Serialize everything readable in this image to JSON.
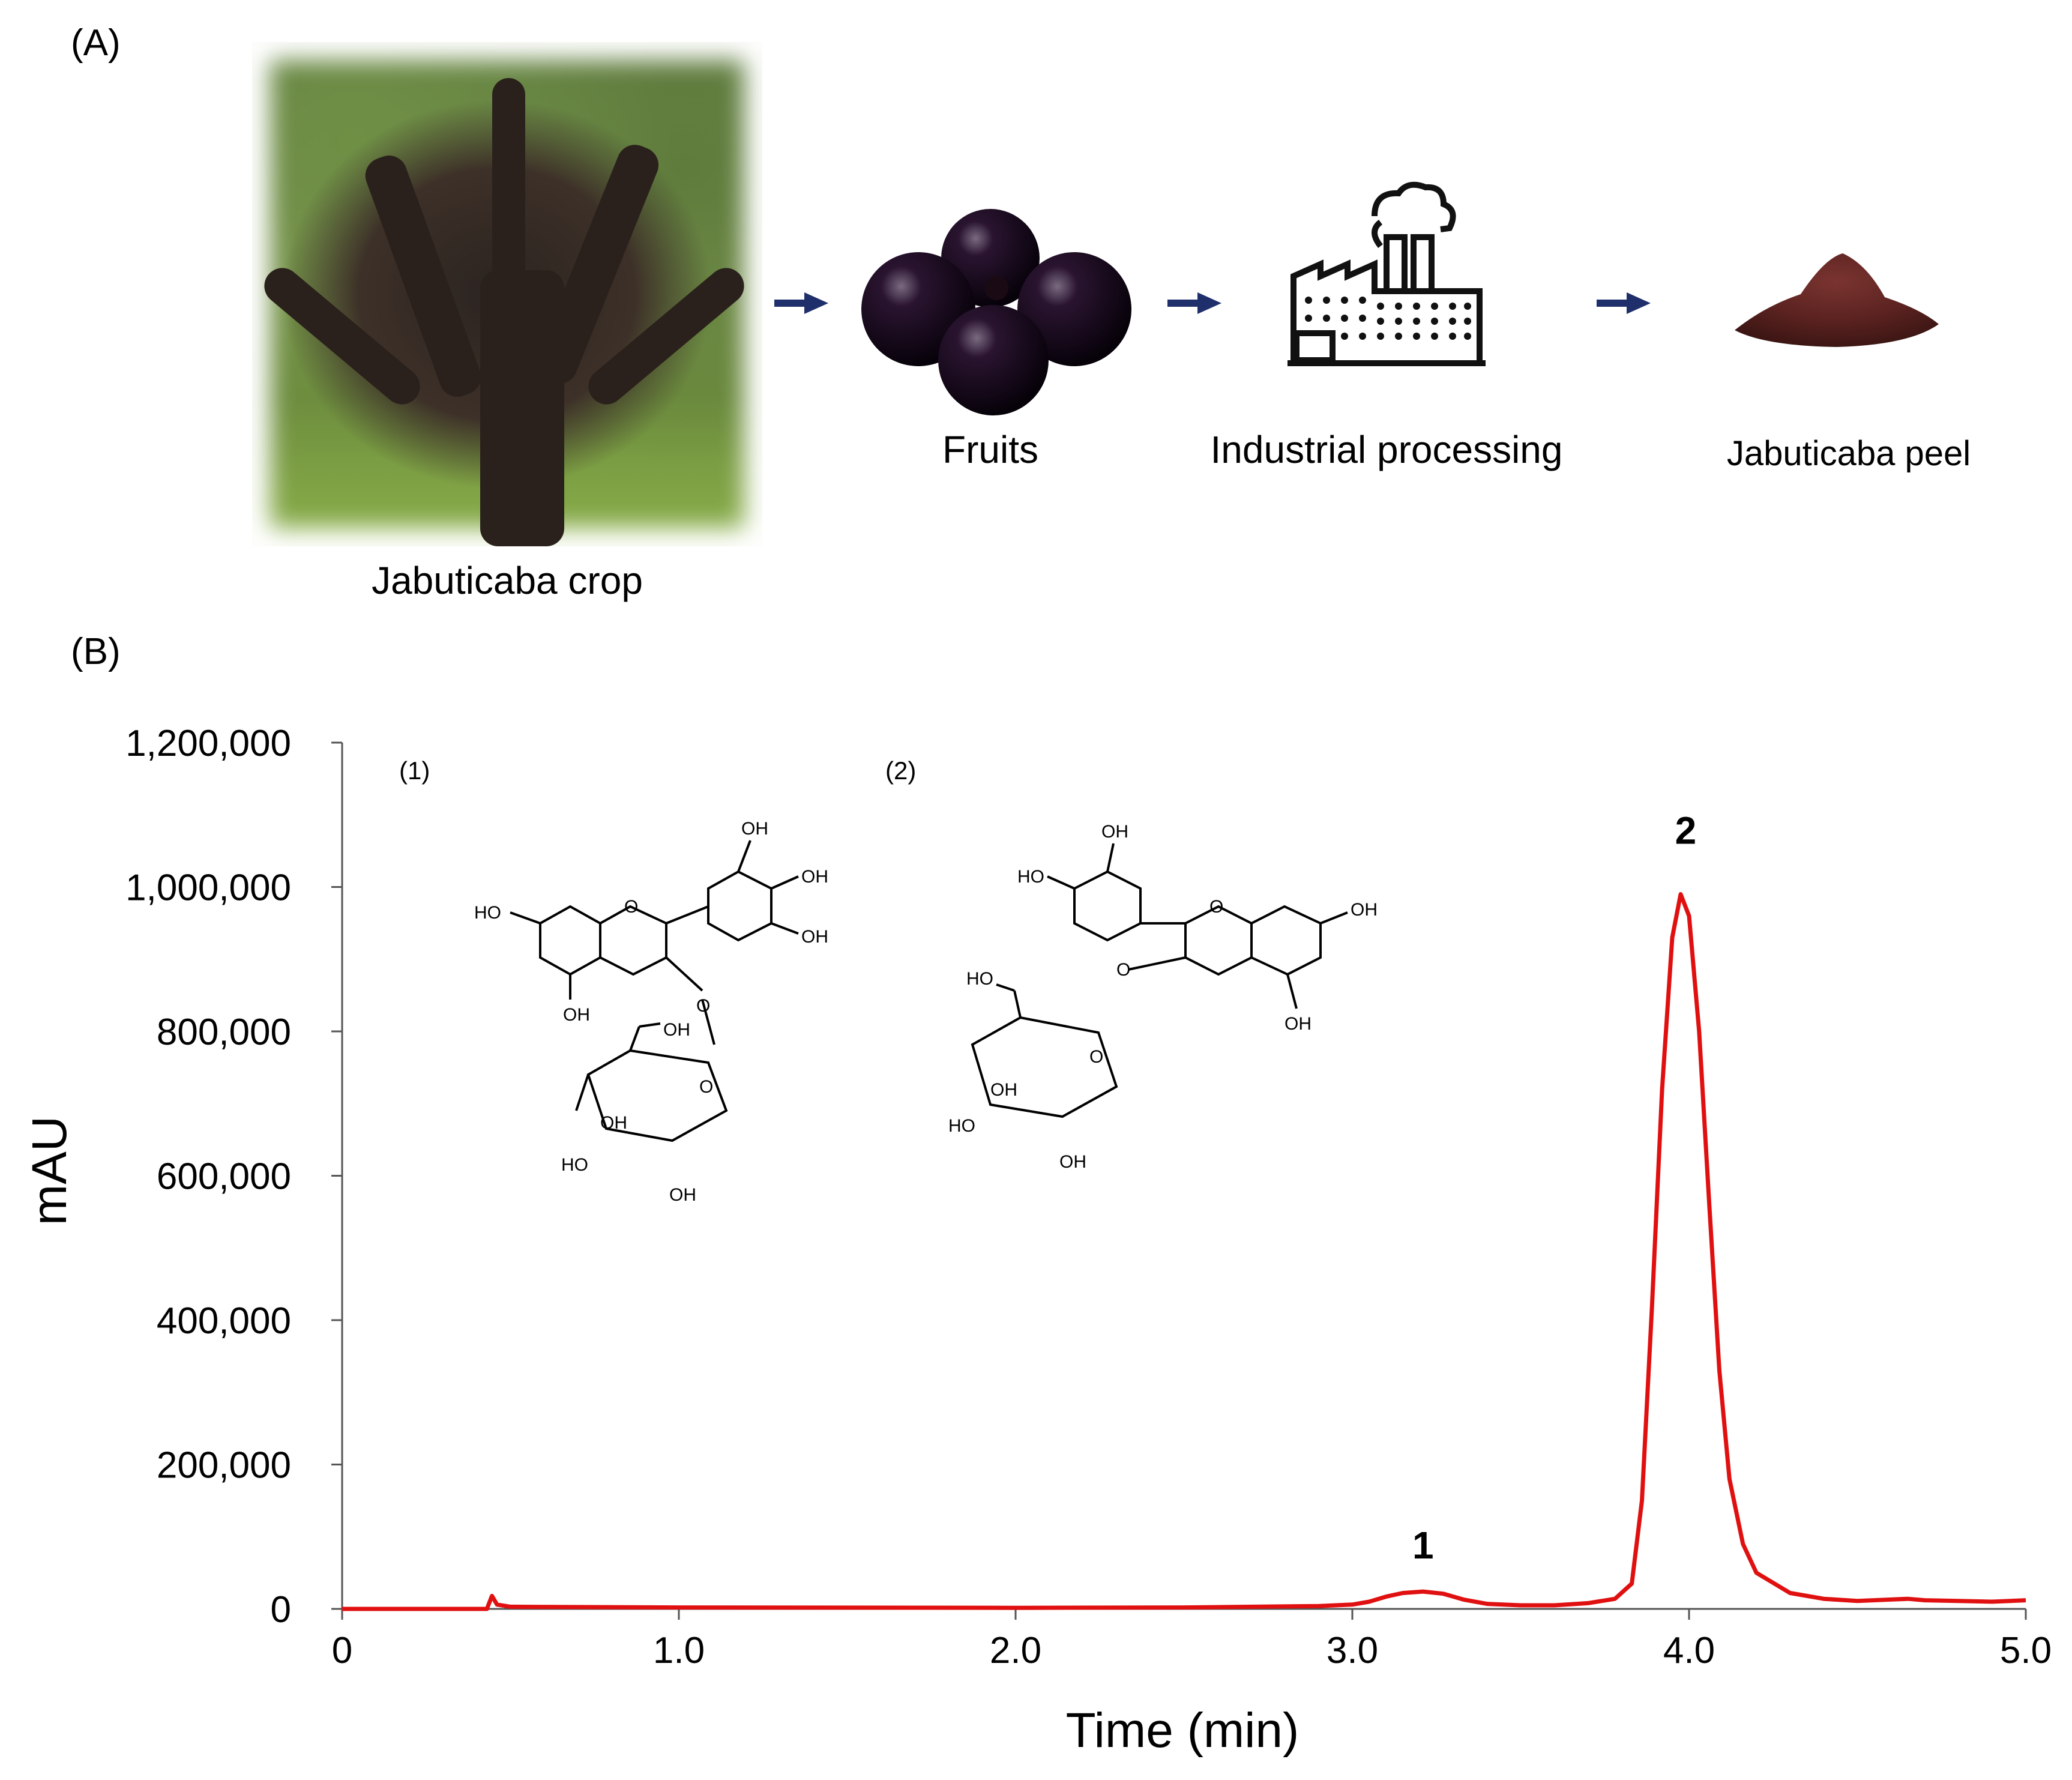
{
  "panel_labels": {
    "a": "(A)",
    "b": "(B)"
  },
  "workflow": {
    "steps": [
      {
        "label": "Jabuticaba crop",
        "icon": "tree-photo"
      },
      {
        "label": "Fruits",
        "icon": "fruits-image"
      },
      {
        "label": "Industrial processing",
        "icon": "factory-icon"
      },
      {
        "label": "Jabuticaba peel",
        "icon": "powder-image"
      }
    ],
    "arrow_color": "#1f2f6b"
  },
  "structures": {
    "s1": {
      "label": "(1)"
    },
    "s2": {
      "label": "(2)"
    },
    "atom_labels": {
      "oh": "OH",
      "ho": "HO",
      "o": "O"
    }
  },
  "chart_data": {
    "type": "line",
    "xlabel": "Time (min)",
    "ylabel": "mAU",
    "xlim": [
      0,
      5.0
    ],
    "ylim": [
      0,
      1200000
    ],
    "x_ticks": [
      "0",
      "1.0",
      "2.0",
      "3.0",
      "4.0",
      "5.0"
    ],
    "x_tick_values": [
      0,
      1.0,
      2.0,
      3.0,
      4.0,
      5.0
    ],
    "y_ticks": [
      "0",
      "200,000",
      "400,000",
      "600,000",
      "800,000",
      "1,000,000",
      "1,200,000"
    ],
    "y_tick_values": [
      0,
      200000,
      400000,
      600000,
      800000,
      1000000,
      1200000
    ],
    "line_color": "#e01010",
    "series": [
      {
        "points": [
          [
            0.0,
            0
          ],
          [
            0.43,
            0
          ],
          [
            0.445,
            18000
          ],
          [
            0.46,
            6000
          ],
          [
            0.5,
            3000
          ],
          [
            1.0,
            2000
          ],
          [
            2.0,
            1500
          ],
          [
            2.5,
            2000
          ],
          [
            2.9,
            4000
          ],
          [
            3.0,
            6000
          ],
          [
            3.05,
            10000
          ],
          [
            3.1,
            17000
          ],
          [
            3.15,
            22000
          ],
          [
            3.21,
            24000
          ],
          [
            3.27,
            21000
          ],
          [
            3.33,
            13000
          ],
          [
            3.4,
            7000
          ],
          [
            3.5,
            5000
          ],
          [
            3.6,
            5000
          ],
          [
            3.7,
            8000
          ],
          [
            3.78,
            14000
          ],
          [
            3.83,
            35000
          ],
          [
            3.86,
            150000
          ],
          [
            3.89,
            420000
          ],
          [
            3.92,
            720000
          ],
          [
            3.95,
            930000
          ],
          [
            3.975,
            990000
          ],
          [
            4.0,
            960000
          ],
          [
            4.03,
            800000
          ],
          [
            4.06,
            560000
          ],
          [
            4.09,
            330000
          ],
          [
            4.12,
            180000
          ],
          [
            4.16,
            90000
          ],
          [
            4.2,
            50000
          ],
          [
            4.3,
            22000
          ],
          [
            4.4,
            14000
          ],
          [
            4.5,
            11000
          ],
          [
            4.6,
            13000
          ],
          [
            4.65,
            14000
          ],
          [
            4.7,
            12000
          ],
          [
            4.8,
            11000
          ],
          [
            4.9,
            10000
          ],
          [
            5.0,
            12000
          ]
        ]
      }
    ],
    "annotations": [
      {
        "text": "1",
        "x": 3.21,
        "y": 70000
      },
      {
        "text": "2",
        "x": 3.99,
        "y": 1060000
      }
    ]
  }
}
